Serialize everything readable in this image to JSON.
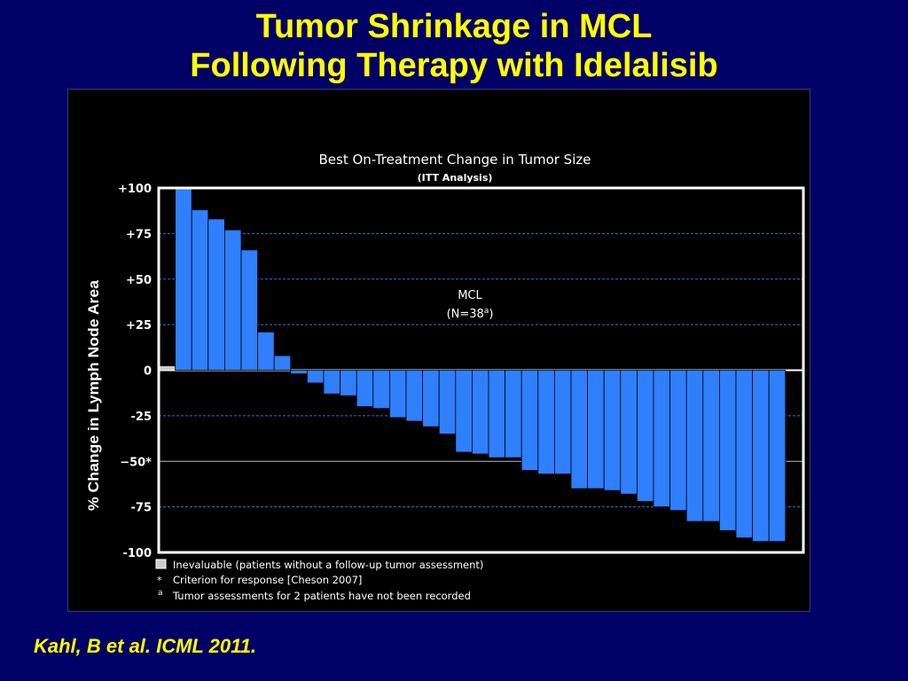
{
  "slide": {
    "title_line1": "Tumor Shrinkage in MCL",
    "title_line2": "Following Therapy with Idelalisib",
    "citation": "Kahl, B et al. ICML 2011."
  },
  "colors": {
    "background": "#000066",
    "title": "#ffff00",
    "bar": "#2f7fff",
    "plot_bg": "#000000",
    "frame": "#ffffff"
  },
  "chart_data": {
    "type": "bar",
    "title": "Best On-Treatment Change in Tumor Size",
    "subtitle": "(ITT Analysis)",
    "ylabel": "% Change in Lymph Node Area",
    "xlabel": "",
    "ylim": [
      -100,
      100
    ],
    "yticks": [
      {
        "value": 100,
        "label": "+100"
      },
      {
        "value": 75,
        "label": "+75"
      },
      {
        "value": 50,
        "label": "+50"
      },
      {
        "value": 25,
        "label": "+25"
      },
      {
        "value": 0,
        "label": "0"
      },
      {
        "value": -25,
        "label": "-25"
      },
      {
        "value": -50,
        "label": "−50*"
      },
      {
        "value": -75,
        "label": "-75"
      },
      {
        "value": -100,
        "label": "-100"
      }
    ],
    "grid": "dashed horizontal at ticks; solid line at 0 and -50",
    "annotation": {
      "line1": "MCL",
      "line2_main": "(N=38",
      "line2_sup": "a",
      "line2_end": ")"
    },
    "inevaluable_count": 1,
    "values": [
      100,
      88,
      83,
      77,
      66,
      21,
      8,
      -2,
      -7,
      -13,
      -14,
      -20,
      -21,
      -26,
      -28,
      -31,
      -35,
      -45,
      -46,
      -48,
      -48,
      -55,
      -57,
      -57,
      -65,
      -65,
      -66,
      -68,
      -72,
      -75,
      -77,
      -83,
      -83,
      -88,
      -92,
      -94,
      -94
    ],
    "footnotes": [
      {
        "symbol": "",
        "text": "Inevaluable (patients without a follow-up tumor assessment)"
      },
      {
        "symbol": "*",
        "text": "Criterion for response [Cheson 2007]"
      },
      {
        "symbol": "a",
        "text": "Tumor assessments for 2 patients have not been recorded"
      }
    ]
  }
}
